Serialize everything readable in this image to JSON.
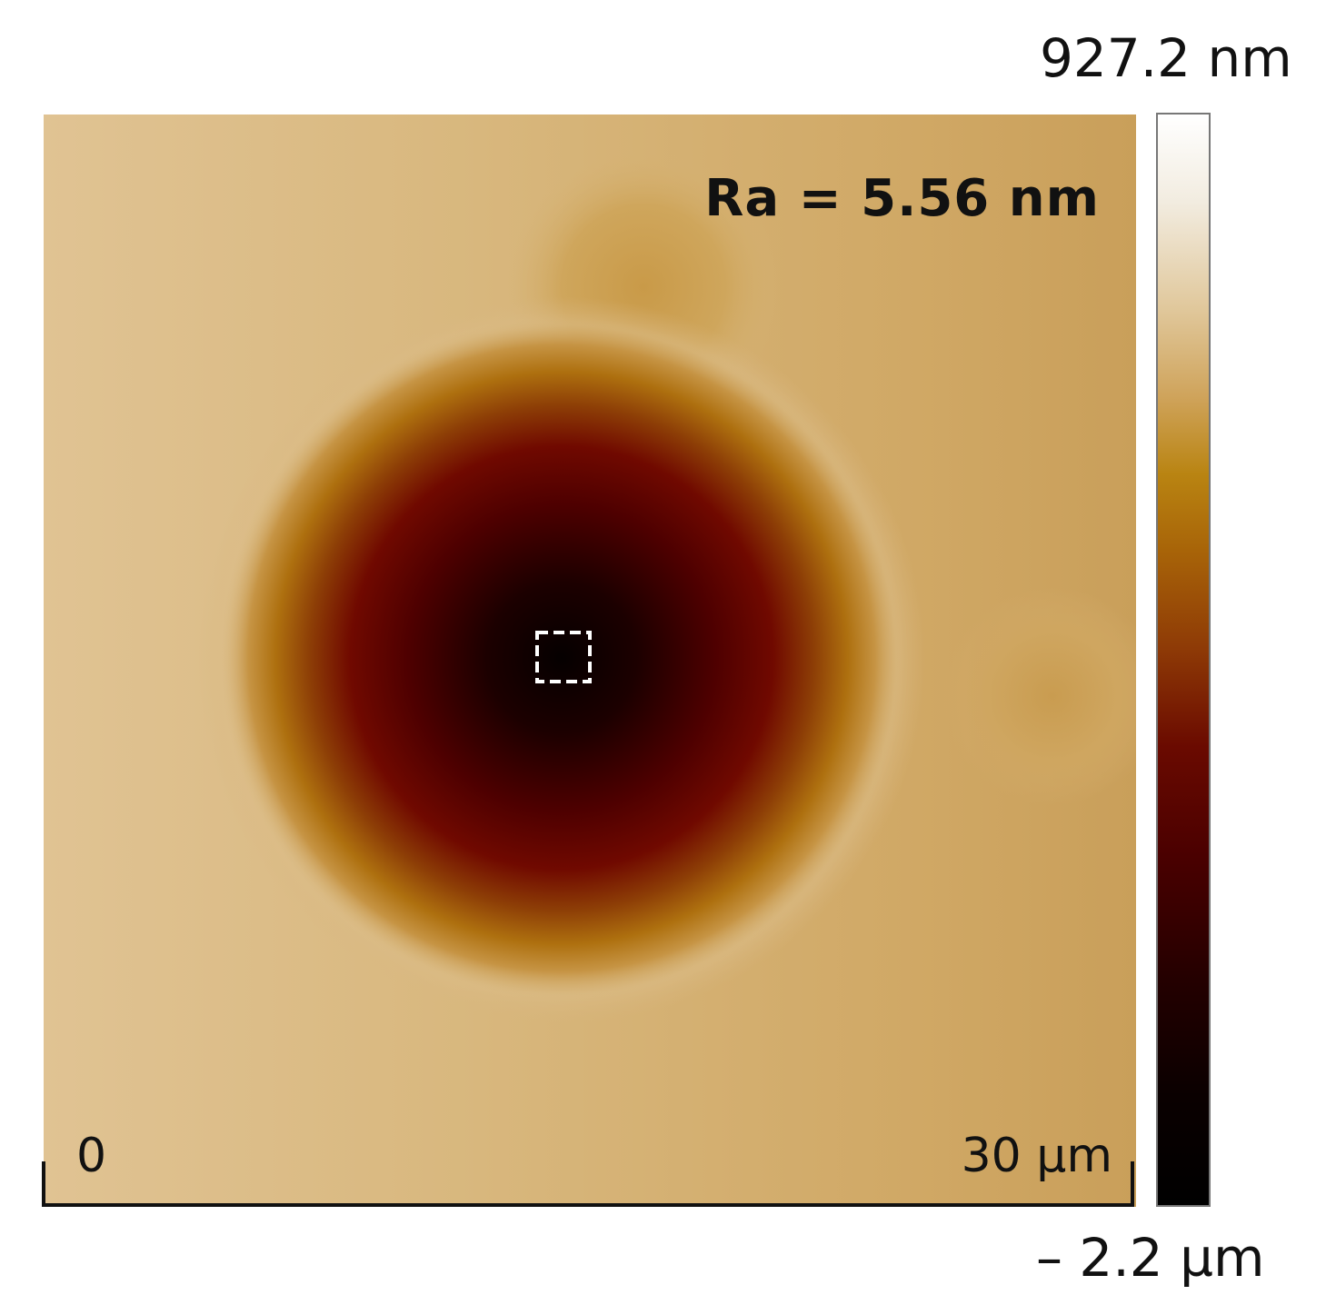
{
  "image": {
    "roughness_label": "Ra = 5.56 nm",
    "scale_start": "0",
    "scale_end": "30 µm"
  },
  "colorbar": {
    "max_label": "927.2 nm",
    "min_label": "– 2.2 µm"
  }
}
